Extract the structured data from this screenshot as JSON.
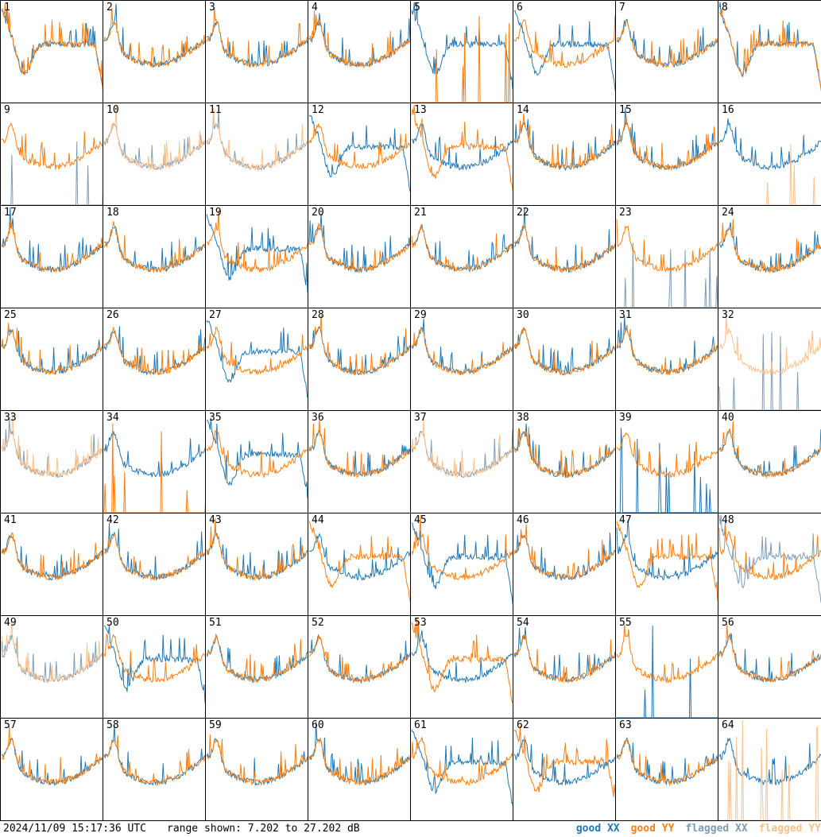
{
  "footer": {
    "timestamp": "2024/11/09 15:17:36 UTC",
    "range_text": "range shown: 7.202 to 27.202 dB"
  },
  "legend": [
    {
      "label": "good XX",
      "color": "#1f77b4"
    },
    {
      "label": "good YY",
      "color": "#ff7f0e"
    },
    {
      "label": "flagged XX",
      "color": "#7f9cb4"
    },
    {
      "label": "flagged YY",
      "color": "#ffc08a"
    }
  ],
  "chart_data": {
    "type": "line",
    "grid": "8x8 small multiples",
    "ylim_db": [
      7.202,
      27.202
    ],
    "tiles": [
      {
        "n": "1",
        "xx": "good",
        "yy": "good",
        "xx_shape": "dip",
        "yy_shape": "dip"
      },
      {
        "n": "2",
        "xx": "good",
        "yy": "good",
        "xx_shape": "normal",
        "yy_shape": "normal"
      },
      {
        "n": "3",
        "xx": "good",
        "yy": "good",
        "xx_shape": "normal",
        "yy_shape": "normal"
      },
      {
        "n": "4",
        "xx": "good",
        "yy": "good",
        "xx_shape": "normal",
        "yy_shape": "normal"
      },
      {
        "n": "5",
        "xx": "good",
        "yy": "good",
        "xx_shape": "dip",
        "yy_shape": "spikes"
      },
      {
        "n": "6",
        "xx": "good",
        "yy": "good",
        "xx_shape": "dip",
        "yy_shape": "normal"
      },
      {
        "n": "7",
        "xx": "good",
        "yy": "good",
        "xx_shape": "normal",
        "yy_shape": "normal"
      },
      {
        "n": "8",
        "xx": "good",
        "yy": "good",
        "xx_shape": "dip",
        "yy_shape": "dip"
      },
      {
        "n": "9",
        "xx": "flagged",
        "yy": "good",
        "xx_shape": "spikes",
        "yy_shape": "normal"
      },
      {
        "n": "10",
        "xx": "flagged",
        "yy": "flagged",
        "xx_shape": "normal",
        "yy_shape": "normal"
      },
      {
        "n": "11",
        "xx": "flagged",
        "yy": "flagged",
        "xx_shape": "normal",
        "yy_shape": "normal"
      },
      {
        "n": "12",
        "xx": "good",
        "yy": "good",
        "xx_shape": "dip",
        "yy_shape": "normal"
      },
      {
        "n": "13",
        "xx": "good",
        "yy": "good",
        "xx_shape": "normal",
        "yy_shape": "dip"
      },
      {
        "n": "14",
        "xx": "good",
        "yy": "good",
        "xx_shape": "normal",
        "yy_shape": "normal"
      },
      {
        "n": "15",
        "xx": "good",
        "yy": "good",
        "xx_shape": "normal",
        "yy_shape": "normal"
      },
      {
        "n": "16",
        "xx": "good",
        "yy": "flagged",
        "xx_shape": "normal",
        "yy_shape": "spikes"
      },
      {
        "n": "17",
        "xx": "good",
        "yy": "good",
        "xx_shape": "normal",
        "yy_shape": "normal"
      },
      {
        "n": "18",
        "xx": "good",
        "yy": "good",
        "xx_shape": "normal",
        "yy_shape": "normal"
      },
      {
        "n": "19",
        "xx": "good",
        "yy": "good",
        "xx_shape": "dip",
        "yy_shape": "normal"
      },
      {
        "n": "20",
        "xx": "good",
        "yy": "good",
        "xx_shape": "normal",
        "yy_shape": "normal"
      },
      {
        "n": "21",
        "xx": "good",
        "yy": "good",
        "xx_shape": "normal",
        "yy_shape": "normal"
      },
      {
        "n": "22",
        "xx": "good",
        "yy": "good",
        "xx_shape": "normal",
        "yy_shape": "normal"
      },
      {
        "n": "23",
        "xx": "flagged",
        "yy": "good",
        "xx_shape": "spikes",
        "yy_shape": "normal"
      },
      {
        "n": "24",
        "xx": "good",
        "yy": "good",
        "xx_shape": "normal",
        "yy_shape": "normal"
      },
      {
        "n": "25",
        "xx": "good",
        "yy": "good",
        "xx_shape": "normal",
        "yy_shape": "normal"
      },
      {
        "n": "26",
        "xx": "good",
        "yy": "good",
        "xx_shape": "normal",
        "yy_shape": "normal"
      },
      {
        "n": "27",
        "xx": "good",
        "yy": "good",
        "xx_shape": "dip",
        "yy_shape": "normal"
      },
      {
        "n": "28",
        "xx": "good",
        "yy": "good",
        "xx_shape": "normal",
        "yy_shape": "normal"
      },
      {
        "n": "29",
        "xx": "good",
        "yy": "good",
        "xx_shape": "normal",
        "yy_shape": "normal"
      },
      {
        "n": "30",
        "xx": "good",
        "yy": "good",
        "xx_shape": "normal",
        "yy_shape": "normal"
      },
      {
        "n": "31",
        "xx": "good",
        "yy": "good",
        "xx_shape": "normal",
        "yy_shape": "normal"
      },
      {
        "n": "32",
        "xx": "flagged",
        "yy": "flagged",
        "xx_shape": "spikes",
        "yy_shape": "normal"
      },
      {
        "n": "33",
        "xx": "flagged",
        "yy": "flagged",
        "xx_shape": "normal",
        "yy_shape": "normal"
      },
      {
        "n": "34",
        "xx": "good",
        "yy": "good",
        "xx_shape": "normal",
        "yy_shape": "spikes"
      },
      {
        "n": "35",
        "xx": "good",
        "yy": "good",
        "xx_shape": "dip",
        "yy_shape": "normal"
      },
      {
        "n": "36",
        "xx": "good",
        "yy": "good",
        "xx_shape": "normal",
        "yy_shape": "normal"
      },
      {
        "n": "37",
        "xx": "flagged",
        "yy": "flagged",
        "xx_shape": "normal",
        "yy_shape": "normal"
      },
      {
        "n": "38",
        "xx": "good",
        "yy": "good",
        "xx_shape": "normal",
        "yy_shape": "normal"
      },
      {
        "n": "39",
        "xx": "good",
        "yy": "good",
        "xx_shape": "spikes",
        "yy_shape": "normal"
      },
      {
        "n": "40",
        "xx": "good",
        "yy": "good",
        "xx_shape": "normal",
        "yy_shape": "normal"
      },
      {
        "n": "41",
        "xx": "good",
        "yy": "good",
        "xx_shape": "normal",
        "yy_shape": "normal"
      },
      {
        "n": "42",
        "xx": "good",
        "yy": "good",
        "xx_shape": "normal",
        "yy_shape": "normal"
      },
      {
        "n": "43",
        "xx": "good",
        "yy": "good",
        "xx_shape": "normal",
        "yy_shape": "normal"
      },
      {
        "n": "44",
        "xx": "good",
        "yy": "good",
        "xx_shape": "normal",
        "yy_shape": "dip"
      },
      {
        "n": "45",
        "xx": "good",
        "yy": "good",
        "xx_shape": "dip",
        "yy_shape": "normal"
      },
      {
        "n": "46",
        "xx": "good",
        "yy": "good",
        "xx_shape": "normal",
        "yy_shape": "normal"
      },
      {
        "n": "47",
        "xx": "good",
        "yy": "good",
        "xx_shape": "normal",
        "yy_shape": "dip"
      },
      {
        "n": "48",
        "xx": "flagged",
        "yy": "good",
        "xx_shape": "dip",
        "yy_shape": "normal"
      },
      {
        "n": "49",
        "xx": "flagged",
        "yy": "flagged",
        "xx_shape": "normal",
        "yy_shape": "normal"
      },
      {
        "n": "50",
        "xx": "good",
        "yy": "good",
        "xx_shape": "dip",
        "yy_shape": "normal"
      },
      {
        "n": "51",
        "xx": "good",
        "yy": "good",
        "xx_shape": "normal",
        "yy_shape": "normal"
      },
      {
        "n": "52",
        "xx": "good",
        "yy": "good",
        "xx_shape": "normal",
        "yy_shape": "normal"
      },
      {
        "n": "53",
        "xx": "good",
        "yy": "good",
        "xx_shape": "normal",
        "yy_shape": "dip"
      },
      {
        "n": "54",
        "xx": "good",
        "yy": "good",
        "xx_shape": "normal",
        "yy_shape": "normal"
      },
      {
        "n": "55",
        "xx": "good",
        "yy": "good",
        "xx_shape": "spikes",
        "yy_shape": "normal"
      },
      {
        "n": "56",
        "xx": "good",
        "yy": "good",
        "xx_shape": "normal",
        "yy_shape": "normal"
      },
      {
        "n": "57",
        "xx": "good",
        "yy": "good",
        "xx_shape": "normal",
        "yy_shape": "normal"
      },
      {
        "n": "58",
        "xx": "good",
        "yy": "good",
        "xx_shape": "normal",
        "yy_shape": "normal"
      },
      {
        "n": "59",
        "xx": "good",
        "yy": "good",
        "xx_shape": "normal",
        "yy_shape": "normal"
      },
      {
        "n": "60",
        "xx": "good",
        "yy": "good",
        "xx_shape": "normal",
        "yy_shape": "normal"
      },
      {
        "n": "61",
        "xx": "good",
        "yy": "good",
        "xx_shape": "dip",
        "yy_shape": "normal"
      },
      {
        "n": "62",
        "xx": "good",
        "yy": "good",
        "xx_shape": "normal",
        "yy_shape": "dip"
      },
      {
        "n": "63",
        "xx": "good",
        "yy": "good",
        "xx_shape": "normal",
        "yy_shape": "normal"
      },
      {
        "n": "64",
        "xx": "good",
        "yy": "flagged",
        "xx_shape": "normal",
        "yy_shape": "spikes"
      }
    ]
  }
}
